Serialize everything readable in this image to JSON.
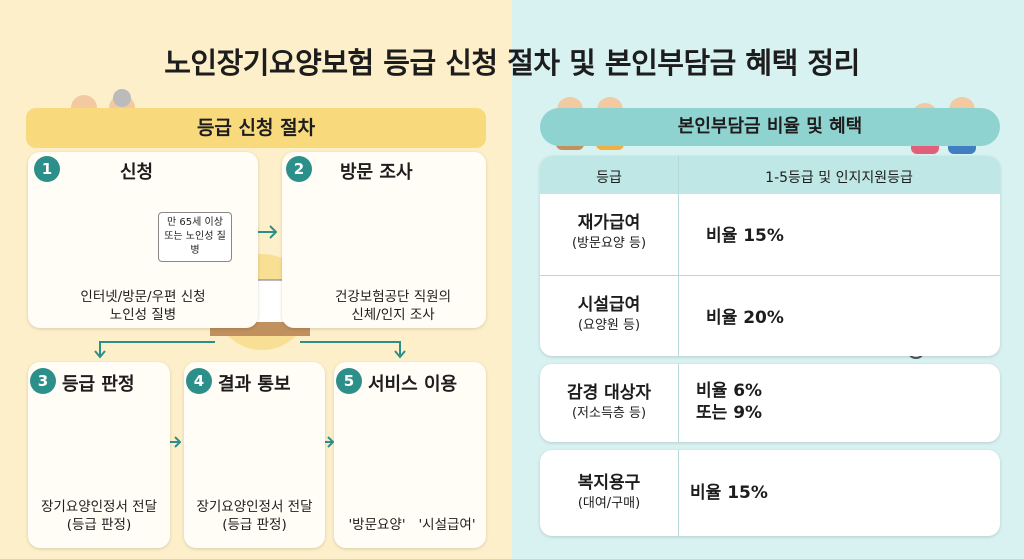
{
  "title": "노인장기요양보험 등급 신청 절차 및 본인부담금 혜택 정리",
  "procedure": {
    "header": "등급 신청 절차",
    "steps": [
      {
        "number": "1",
        "title": "신청",
        "note": [
          "만 65세 이상",
          "또는 노인성 질병"
        ],
        "caption": [
          "인터넷/방문/우편 신청",
          "노인성 질병"
        ]
      },
      {
        "number": "2",
        "title": "방문 조사",
        "caption": [
          "건강보험공단 직원의",
          "신체/인지 조사"
        ]
      },
      {
        "number": "3",
        "title": "등급 판정",
        "caption": [
          "장기요양인정서 전달",
          "(등급 판정)"
        ]
      },
      {
        "number": "4",
        "title": "결과 통보",
        "caption": [
          "장기요양인정서 전달",
          "(등급 판정)"
        ]
      },
      {
        "number": "5",
        "title": "서비스 이용",
        "caption": [
          "'방문요양'",
          "'시설급여'"
        ]
      }
    ]
  },
  "benefits": {
    "header": "본인부담금 비율 및 혜택",
    "table": {
      "columns": [
        "등급",
        "1-5등급 및 인지지원등급"
      ],
      "rows": [
        {
          "name": "재가급여",
          "detail": "(방문요양 등)",
          "rate": [
            "비율 15%"
          ]
        },
        {
          "name": "시설급여",
          "detail": "(요양원 등)",
          "rate": [
            "비율 20%"
          ]
        },
        {
          "name": "감경 대상자",
          "detail": "(저소득층 등)",
          "rate": [
            "비율 6%",
            "또는 9%"
          ]
        },
        {
          "name": "복지용구",
          "detail": "(대여/구매)",
          "rate": [
            "비율 15%"
          ]
        }
      ]
    }
  }
}
